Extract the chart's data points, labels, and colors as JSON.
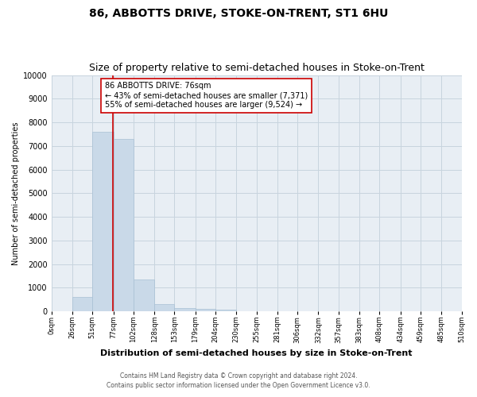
{
  "title": "86, ABBOTTS DRIVE, STOKE-ON-TRENT, ST1 6HU",
  "subtitle": "Size of property relative to semi-detached houses in Stoke-on-Trent",
  "xlabel": "Distribution of semi-detached houses by size in Stoke-on-Trent",
  "ylabel": "Number of semi-detached properties",
  "footer1": "Contains HM Land Registry data © Crown copyright and database right 2024.",
  "footer2": "Contains public sector information licensed under the Open Government Licence v3.0.",
  "bin_edges": [
    0,
    26,
    51,
    77,
    102,
    128,
    153,
    179,
    204,
    230,
    255,
    281,
    306,
    332,
    357,
    383,
    408,
    434,
    459,
    485,
    510
  ],
  "bar_heights": [
    0,
    600,
    7600,
    7300,
    1350,
    300,
    150,
    100,
    80,
    0,
    0,
    0,
    0,
    0,
    0,
    0,
    0,
    0,
    0,
    0
  ],
  "bar_color": "#c9d9e8",
  "bar_edgecolor": "#a8c0d4",
  "property_size": 76,
  "line_color": "#cc0000",
  "annotation_line1": "86 ABBOTTS DRIVE: 76sqm",
  "annotation_line2": "← 43% of semi-detached houses are smaller (7,371)",
  "annotation_line3": "55% of semi-detached houses are larger (9,524) →",
  "annotation_box_color": "#ffffff",
  "annotation_box_edgecolor": "#cc0000",
  "ylim": [
    0,
    10000
  ],
  "yticks": [
    0,
    1000,
    2000,
    3000,
    4000,
    5000,
    6000,
    7000,
    8000,
    9000,
    10000
  ],
  "background_color": "#ffffff",
  "plot_bg_color": "#e8eef4",
  "grid_color": "#c8d4de",
  "title_fontsize": 10,
  "subtitle_fontsize": 9,
  "tick_labels": [
    "0sqm",
    "26sqm",
    "51sqm",
    "77sqm",
    "102sqm",
    "128sqm",
    "153sqm",
    "179sqm",
    "204sqm",
    "230sqm",
    "255sqm",
    "281sqm",
    "306sqm",
    "332sqm",
    "357sqm",
    "383sqm",
    "408sqm",
    "434sqm",
    "459sqm",
    "485sqm",
    "510sqm"
  ]
}
